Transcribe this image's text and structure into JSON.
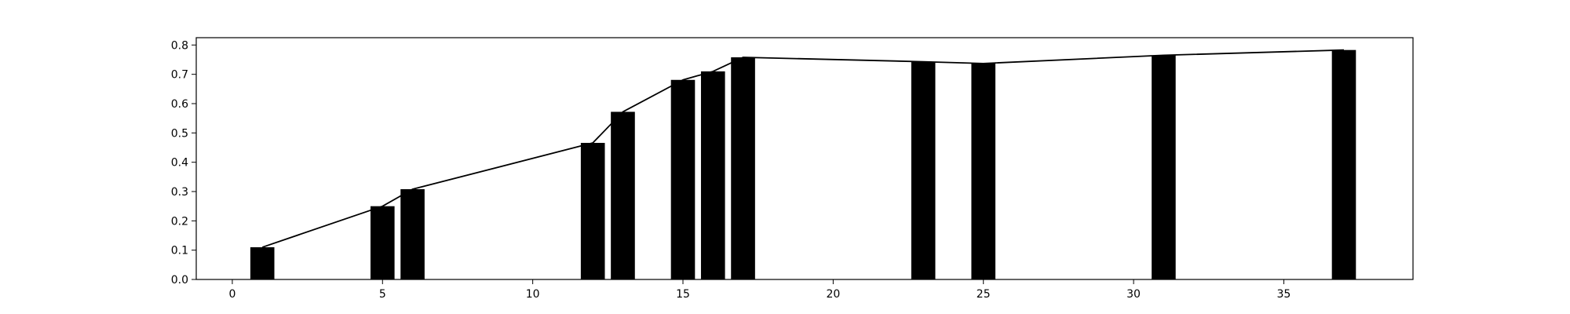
{
  "colors": {
    "bar": "#000000",
    "line": "#000000",
    "axes": "#000000",
    "background": "#ffffff"
  },
  "chart_data": {
    "type": "bar",
    "title": "",
    "xlabel": "",
    "ylabel": "",
    "grid": false,
    "legend": "none",
    "xlim": [
      -1.2,
      39.3
    ],
    "ylim": [
      0.0,
      0.825
    ],
    "x_ticks": [
      0,
      5,
      10,
      15,
      20,
      25,
      30,
      35
    ],
    "y_ticks": [
      0.0,
      0.1,
      0.2,
      0.3,
      0.4,
      0.5,
      0.6,
      0.7,
      0.8
    ],
    "bar_width": 0.8,
    "series": [
      {
        "type": "bar",
        "x": [
          1,
          5,
          6,
          12,
          13,
          15,
          16,
          17,
          23,
          25,
          31,
          37
        ],
        "values": [
          0.11,
          0.25,
          0.308,
          0.466,
          0.572,
          0.681,
          0.71,
          0.758,
          0.743,
          0.737,
          0.765,
          0.783
        ]
      },
      {
        "type": "line",
        "x": [
          1,
          5,
          6,
          12,
          13,
          15,
          16,
          17,
          23,
          25,
          31,
          37
        ],
        "values": [
          0.11,
          0.25,
          0.308,
          0.466,
          0.572,
          0.681,
          0.71,
          0.758,
          0.743,
          0.737,
          0.765,
          0.783
        ]
      }
    ]
  }
}
